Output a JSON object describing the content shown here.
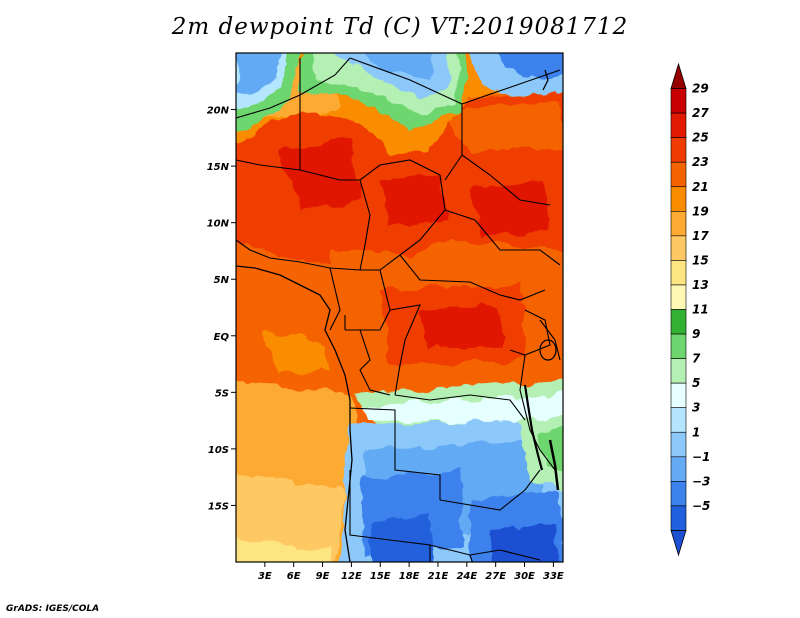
{
  "title": "2m dewpoint Td (C) VT:2019081712",
  "footer": "GrADS: IGES/COLA",
  "map": {
    "variable": "2m dewpoint",
    "units": "C",
    "valid_time": "2019081712",
    "lon_range": [
      0,
      34
    ],
    "lat_range": [
      -20,
      25
    ],
    "x_ticks": [
      "3E",
      "6E",
      "9E",
      "12E",
      "15E",
      "18E",
      "21E",
      "24E",
      "27E",
      "30E",
      "33E"
    ],
    "y_ticks": [
      "20N",
      "15N",
      "10N",
      "5N",
      "EQ",
      "5S",
      "10S",
      "15S"
    ]
  },
  "colorbar": {
    "levels": [
      "29",
      "27",
      "25",
      "23",
      "21",
      "19",
      "17",
      "15",
      "13",
      "11",
      "9",
      "7",
      "5",
      "3",
      "1",
      "-1",
      "-3",
      "-5"
    ],
    "colors": [
      "#960000",
      "#c80000",
      "#e11900",
      "#f03c00",
      "#f56400",
      "#fa8c00",
      "#fdaa32",
      "#fec864",
      "#fde682",
      "#fff8b4",
      "#33b133",
      "#6ed66e",
      "#b4f0b4",
      "#e6ffff",
      "#b4e6ff",
      "#8cc8fa",
      "#64aaf5",
      "#3c82ec",
      "#2060dc",
      "#1e50d2"
    ]
  }
}
